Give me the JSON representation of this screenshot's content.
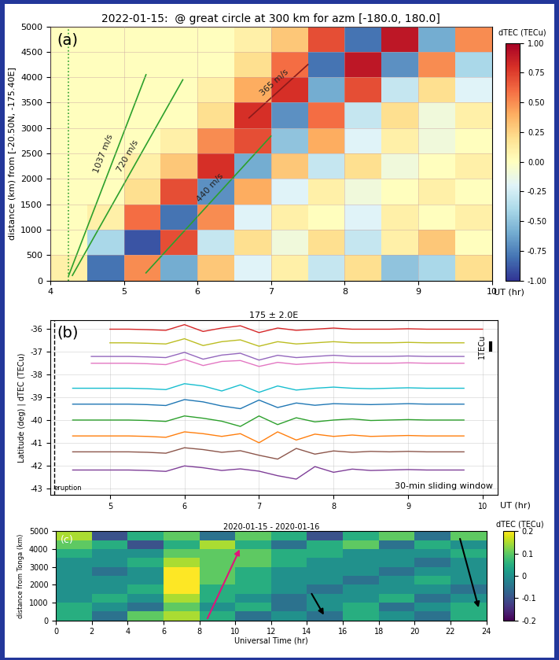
{
  "chart_data": [
    {
      "type": "heatmap",
      "panel_label": "(a)",
      "title": "2022-01-15:  @ great circle at 300 km for azm [-180.0, 180.0]",
      "x_label": "UT (hr)",
      "y_label": "distance (km) from [-20.50N, -175.40E]",
      "xlim": [
        4,
        10
      ],
      "xticks": [
        4,
        5,
        6,
        7,
        8,
        9,
        10
      ],
      "ylim": [
        0,
        5000
      ],
      "yticks": [
        0,
        500,
        1000,
        1500,
        2000,
        2500,
        3000,
        3500,
        4000,
        4500,
        5000
      ],
      "grid": true,
      "x": [
        4.25,
        4.75,
        5.25,
        5.75,
        6.25,
        6.75,
        7.25,
        7.75,
        8.25,
        8.75,
        9.25,
        9.75
      ],
      "y": [
        250,
        750,
        1250,
        1750,
        2250,
        2750,
        3250,
        3750,
        4250,
        4750
      ],
      "cells": [
        [
          0.1,
          -0.8,
          0.5,
          -0.6,
          0.3,
          -0.2,
          0.1,
          -0.3,
          0.2,
          -0.5,
          -0.4,
          0.2
        ],
        [
          0.0,
          -0.4,
          -0.9,
          0.7,
          -0.3,
          0.2,
          -0.1,
          0.2,
          -0.3,
          0.1,
          0.3,
          0.0
        ],
        [
          0.0,
          0.1,
          0.6,
          -0.8,
          0.5,
          -0.2,
          0.1,
          0.0,
          -0.2,
          0.1,
          0.0,
          0.1
        ],
        [
          0.0,
          0.0,
          0.2,
          0.7,
          -0.7,
          0.4,
          -0.2,
          0.1,
          -0.1,
          0.0,
          0.1,
          0.0
        ],
        [
          0.0,
          0.0,
          0.1,
          0.3,
          0.8,
          -0.6,
          0.3,
          -0.3,
          0.2,
          -0.1,
          0.0,
          0.1
        ],
        [
          0.0,
          0.0,
          0.0,
          0.1,
          0.5,
          0.7,
          -0.5,
          0.4,
          -0.2,
          0.1,
          -0.1,
          0.0
        ],
        [
          0.0,
          0.0,
          0.0,
          0.0,
          0.2,
          0.8,
          -0.7,
          0.6,
          -0.3,
          0.2,
          -0.1,
          0.1
        ],
        [
          0.0,
          0.0,
          0.0,
          0.0,
          0.1,
          0.4,
          0.8,
          -0.6,
          0.7,
          -0.3,
          0.2,
          -0.2
        ],
        [
          0.0,
          0.0,
          0.0,
          0.0,
          0.0,
          0.2,
          0.6,
          -0.8,
          0.9,
          -0.7,
          0.5,
          -0.4
        ],
        [
          0.0,
          0.0,
          0.0,
          0.0,
          0.0,
          0.1,
          0.3,
          0.7,
          -0.8,
          0.9,
          -0.6,
          0.5
        ]
      ],
      "colorbar": {
        "label": "dTEC (TECu)",
        "range": [
          -1,
          1
        ],
        "ticks": [
          {
            "value": -1,
            "label": "-1.00"
          },
          {
            "value": -0.75,
            "label": "-0.75"
          },
          {
            "value": -0.5,
            "label": "-0.50"
          },
          {
            "value": -0.25,
            "label": "-0.25"
          },
          {
            "value": 0,
            "label": "0.00"
          },
          {
            "value": 0.25,
            "label": "0.25"
          },
          {
            "value": 0.5,
            "label": "0.50"
          },
          {
            "value": 0.75,
            "label": "0.75"
          },
          {
            "value": 1,
            "label": "1.00"
          }
        ]
      },
      "eruption_x": 4.25,
      "speed_lines": [
        {
          "label": "1037 m/s",
          "x": [
            4.25,
            5.3
          ],
          "y": [
            100,
            4050
          ],
          "color": "#2ca02c"
        },
        {
          "label": "720 m/s",
          "x": [
            4.3,
            5.8
          ],
          "y": [
            100,
            3950
          ],
          "color": "#2ca02c"
        },
        {
          "label": "440 m/s",
          "x": [
            5.3,
            7.0
          ],
          "y": [
            150,
            2843
          ],
          "color": "#2ca02c"
        },
        {
          "label": "365 m/s",
          "x": [
            6.7,
            7.5
          ],
          "y": [
            3200,
            4250
          ],
          "color": "#8b1a1a"
        }
      ]
    },
    {
      "type": "line",
      "panel_label": "(b)",
      "title": "175 ± 2.0E",
      "x_label": "UT (hr)",
      "y_label": "Latitude (deg) | dTEC (TECu)",
      "scale_label": "1TECu",
      "window_label": "30-min sliding window",
      "eruption": {
        "label": "eruption",
        "x": 4.25
      },
      "xlim": [
        4.2,
        10.2
      ],
      "xticks": [
        5,
        6,
        7,
        8,
        9,
        10
      ],
      "ylim": [
        -43.3,
        -35.6
      ],
      "yticks": [
        -43,
        -42,
        -41,
        -40,
        -39,
        -38,
        -37,
        -36
      ],
      "grid": true,
      "x": [
        4.5,
        4.75,
        5.0,
        5.25,
        5.5,
        5.75,
        6.0,
        6.25,
        6.5,
        6.75,
        7.0,
        7.25,
        7.5,
        7.75,
        8.0,
        8.25,
        8.5,
        8.75,
        9.0,
        9.25,
        9.5,
        9.75,
        10.0
      ],
      "series": [
        {
          "color": "#d62728",
          "values": [
            null,
            null,
            -36.0,
            -36.0,
            -36.02,
            -36.05,
            -35.8,
            -36.1,
            -35.95,
            -35.85,
            -36.15,
            -35.95,
            -36.05,
            -36.0,
            -35.95,
            -36.0,
            -36.0,
            -36.0,
            -35.98,
            -36.0,
            -36.0,
            -36.0,
            -36.0
          ]
        },
        {
          "color": "#bcbd22",
          "values": [
            null,
            null,
            -36.6,
            -36.6,
            -36.62,
            -36.65,
            -36.42,
            -36.72,
            -36.55,
            -36.47,
            -36.75,
            -36.55,
            -36.65,
            -36.6,
            -36.55,
            -36.6,
            -36.6,
            -36.6,
            -36.58,
            -36.6,
            -36.6,
            -36.6,
            null
          ]
        },
        {
          "color": "#9467bd",
          "values": [
            null,
            -37.2,
            -37.2,
            -37.2,
            -37.22,
            -37.25,
            -37.02,
            -37.32,
            -37.14,
            -37.06,
            -37.36,
            -37.15,
            -37.25,
            -37.2,
            -37.15,
            -37.2,
            -37.2,
            -37.2,
            -37.18,
            -37.2,
            -37.2,
            -37.2,
            null
          ]
        },
        {
          "color": "#e377c2",
          "values": [
            null,
            -37.5,
            -37.5,
            -37.5,
            -37.52,
            -37.56,
            -37.33,
            -37.6,
            -37.42,
            -37.38,
            -37.64,
            -37.46,
            -37.55,
            -37.5,
            -37.46,
            -37.5,
            -37.5,
            -37.5,
            -37.48,
            -37.5,
            -37.5,
            -37.5,
            null
          ]
        },
        {
          "color": "#17becf",
          "values": [
            -38.6,
            -38.6,
            -38.6,
            -38.6,
            -38.62,
            -38.66,
            -38.4,
            -38.5,
            -38.72,
            -38.45,
            -38.78,
            -38.5,
            -38.68,
            -38.6,
            -38.55,
            -38.6,
            -38.62,
            -38.6,
            -38.58,
            -38.6,
            -38.6,
            -38.6,
            null
          ]
        },
        {
          "color": "#1f77b4",
          "values": [
            -39.3,
            -39.3,
            -39.3,
            -39.3,
            -39.32,
            -39.36,
            -39.1,
            -39.2,
            -39.38,
            -39.5,
            -39.12,
            -39.45,
            -39.25,
            -39.35,
            -39.28,
            -39.3,
            -39.32,
            -39.3,
            -39.28,
            -39.3,
            -39.3,
            -39.3,
            null
          ]
        },
        {
          "color": "#2ca02c",
          "values": [
            -40.0,
            -40.0,
            -40.0,
            -40.0,
            -40.02,
            -40.06,
            -39.82,
            -39.92,
            -40.05,
            -40.28,
            -39.82,
            -40.2,
            -39.9,
            -40.08,
            -40.0,
            -39.95,
            -40.02,
            -40.0,
            -39.98,
            -40.0,
            -40.0,
            -40.0,
            null
          ]
        },
        {
          "color": "#ff7f0e",
          "values": [
            -40.7,
            -40.7,
            -40.7,
            -40.7,
            -40.72,
            -40.76,
            -40.52,
            -40.6,
            -40.72,
            -40.6,
            -41.0,
            -40.52,
            -40.88,
            -40.62,
            -40.72,
            -40.66,
            -40.72,
            -40.7,
            -40.68,
            -40.7,
            -40.7,
            -40.7,
            null
          ]
        },
        {
          "color": "#8c564b",
          "values": [
            -41.4,
            -41.4,
            -41.4,
            -41.4,
            -41.42,
            -41.46,
            -41.22,
            -41.3,
            -41.42,
            -41.35,
            -41.55,
            -41.72,
            -41.25,
            -41.5,
            -41.36,
            -41.42,
            -41.38,
            -41.4,
            -41.38,
            -41.4,
            -41.4,
            -41.4,
            null
          ]
        },
        {
          "color": "#7f3f98",
          "values": [
            -42.2,
            -42.2,
            -42.2,
            -42.2,
            -42.22,
            -42.26,
            -42.02,
            -42.1,
            -42.22,
            -42.15,
            -42.25,
            -42.45,
            -42.6,
            -42.05,
            -42.3,
            -42.16,
            -42.22,
            -42.2,
            -42.18,
            -42.2,
            -42.2,
            -42.2,
            null
          ]
        }
      ]
    },
    {
      "type": "heatmap",
      "panel_label": "(c)",
      "title": "2020-01-15 - 2020-01-16",
      "x_label": "Universal Time (hr)",
      "y_label": "distance from Tonga (km)",
      "xlim": [
        0,
        24
      ],
      "xticks": [
        0,
        2,
        4,
        6,
        8,
        10,
        12,
        14,
        16,
        18,
        20,
        22,
        24
      ],
      "ylim": [
        0,
        5000
      ],
      "yticks": [
        0,
        1000,
        2000,
        3000,
        4000,
        5000
      ],
      "x": [
        1,
        3,
        5,
        7,
        9,
        11,
        13,
        15,
        17,
        19,
        21,
        23
      ],
      "y": [
        250,
        750,
        1250,
        1750,
        2250,
        2750,
        3250,
        3750,
        4250,
        4750
      ],
      "cells": [
        [
          0.05,
          -0.05,
          0.1,
          0.15,
          0.05,
          -0.05,
          0.0,
          -0.05,
          0.05,
          0.0,
          -0.05,
          0.05
        ],
        [
          0.05,
          0.0,
          -0.05,
          0.1,
          0.0,
          0.05,
          -0.05,
          0.0,
          0.05,
          -0.05,
          0.0,
          0.05
        ],
        [
          0.0,
          0.05,
          0.0,
          0.15,
          0.05,
          0.0,
          -0.05,
          0.0,
          0.0,
          0.05,
          -0.05,
          0.0
        ],
        [
          0.0,
          0.0,
          0.05,
          0.2,
          0.05,
          0.05,
          0.0,
          -0.05,
          0.0,
          0.0,
          0.0,
          -0.05
        ],
        [
          0.0,
          0.0,
          0.0,
          0.2,
          0.1,
          0.05,
          0.0,
          0.0,
          -0.05,
          0.0,
          0.05,
          0.0
        ],
        [
          0.0,
          -0.05,
          0.0,
          0.2,
          0.1,
          0.05,
          0.0,
          0.0,
          0.0,
          -0.05,
          0.0,
          0.0
        ],
        [
          0.0,
          0.0,
          0.05,
          0.15,
          0.1,
          0.1,
          0.05,
          0.0,
          0.0,
          0.0,
          -0.05,
          0.0
        ],
        [
          0.05,
          0.0,
          0.0,
          0.1,
          0.1,
          0.1,
          0.05,
          0.05,
          0.0,
          0.0,
          0.0,
          0.05
        ],
        [
          0.1,
          0.05,
          -0.1,
          0.05,
          0.15,
          0.05,
          -0.05,
          0.05,
          0.1,
          -0.05,
          0.05,
          0.0
        ],
        [
          0.15,
          -0.1,
          0.05,
          0.1,
          -0.05,
          0.1,
          0.05,
          -0.1,
          0.05,
          0.1,
          -0.05,
          0.1
        ]
      ],
      "colorbar": {
        "label": "dTEC (TECu)",
        "range": [
          -0.2,
          0.2
        ],
        "ticks": [
          -0.2,
          -0.1,
          0,
          0.1,
          0.2
        ]
      },
      "arrows": [
        {
          "x": [
            8.4,
            10.3
          ],
          "y": [
            0,
            4100
          ],
          "color": "#e0157a"
        },
        {
          "x": [
            22.5,
            23.6
          ],
          "y": [
            4700,
            600
          ],
          "color": "#000000"
        },
        {
          "x": [
            14.2,
            15.0
          ],
          "y": [
            1600,
            200
          ],
          "color": "#000000"
        }
      ]
    }
  ]
}
